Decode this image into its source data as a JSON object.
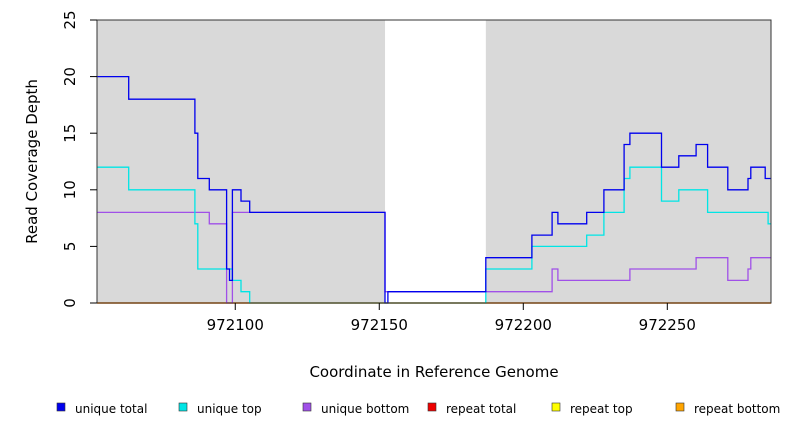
{
  "chart_data": {
    "type": "line",
    "title": "",
    "xlabel": "Coordinate in Reference Genome",
    "ylabel": "Read Coverage Depth",
    "xlim": [
      972052,
      972286
    ],
    "ylim": [
      0,
      25
    ],
    "xticks": [
      972100,
      972150,
      972200,
      972250
    ],
    "xtick_labels": [
      "972100",
      "972150",
      "972200",
      "972250"
    ],
    "yticks": [
      0,
      5,
      10,
      15,
      20,
      25
    ],
    "ytick_labels": [
      "0",
      "5",
      "10",
      "15",
      "20",
      "25"
    ],
    "shaded_regions": [
      [
        972052,
        972152
      ],
      [
        972187,
        972286
      ]
    ],
    "grid": false,
    "legend_position": "bottom",
    "series": [
      {
        "name": "unique total",
        "color": "#0000ee",
        "x": [
          972052,
          972063,
          972063,
          972086,
          972086,
          972087,
          972087,
          972091,
          972091,
          972097,
          972097,
          972098,
          972098,
          972099,
          972099,
          972102,
          972102,
          972105,
          972105,
          972152,
          972152,
          972153,
          972153,
          972187,
          972187,
          972203,
          972203,
          972210,
          972210,
          972212,
          972212,
          972222,
          972222,
          972228,
          972228,
          972235,
          972235,
          972237,
          972237,
          972248,
          972248,
          972254,
          972254,
          972260,
          972260,
          972264,
          972264,
          972271,
          972271,
          972278,
          972278,
          972279,
          972279,
          972284,
          972284,
          972286
        ],
        "y": [
          20,
          20,
          18,
          18,
          15,
          15,
          11,
          11,
          10,
          10,
          3,
          3,
          2,
          2,
          10,
          10,
          9,
          9,
          8,
          8,
          0,
          0,
          1,
          1,
          4,
          4,
          6,
          6,
          8,
          8,
          7,
          7,
          8,
          8,
          10,
          10,
          14,
          14,
          15,
          15,
          12,
          12,
          13,
          13,
          14,
          14,
          12,
          12,
          10,
          10,
          11,
          11,
          12,
          12,
          11,
          11
        ]
      },
      {
        "name": "unique top",
        "color": "#00e5e5",
        "x": [
          972052,
          972063,
          972063,
          972086,
          972086,
          972087,
          972087,
          972099,
          972099,
          972102,
          972102,
          972105,
          972105,
          972187,
          972187,
          972203,
          972203,
          972222,
          972222,
          972228,
          972228,
          972235,
          972235,
          972237,
          972237,
          972248,
          972248,
          972254,
          972254,
          972264,
          972264,
          972285,
          972285,
          972286
        ],
        "y": [
          12,
          12,
          10,
          10,
          7,
          7,
          3,
          3,
          2,
          2,
          1,
          1,
          0,
          0,
          3,
          3,
          5,
          5,
          6,
          6,
          8,
          8,
          11,
          11,
          12,
          12,
          9,
          9,
          10,
          10,
          8,
          8,
          7,
          7
        ]
      },
      {
        "name": "unique bottom",
        "color": "#a050e8",
        "x": [
          972052,
          972091,
          972091,
          972097,
          972097,
          972099,
          972099,
          972152,
          972152,
          972187,
          972187,
          972210,
          972210,
          972212,
          972212,
          972237,
          972237,
          972260,
          972260,
          972271,
          972271,
          972278,
          972278,
          972279,
          972279,
          972286
        ],
        "y": [
          8,
          8,
          7,
          7,
          0,
          0,
          8,
          8,
          1,
          1,
          1,
          1,
          3,
          3,
          2,
          2,
          3,
          3,
          4,
          4,
          2,
          2,
          3,
          3,
          4,
          4
        ]
      },
      {
        "name": "repeat total",
        "color": "#ee0000",
        "x": [
          972052,
          972286
        ],
        "y": [
          0,
          0
        ]
      },
      {
        "name": "repeat top",
        "color": "#ffff00",
        "x": [
          972052,
          972286
        ],
        "y": [
          0,
          0
        ]
      },
      {
        "name": "repeat bottom",
        "color": "#ffa500",
        "x": [
          972052,
          972286
        ],
        "y": [
          0,
          0
        ]
      }
    ]
  }
}
